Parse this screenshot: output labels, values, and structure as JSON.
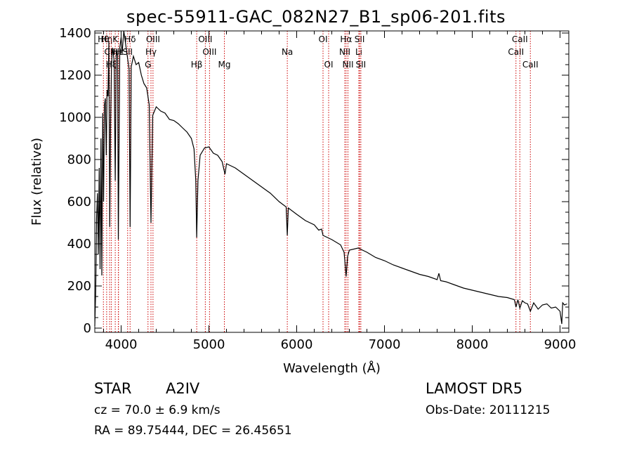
{
  "title": "spec-55911-GAC_082N27_B1_sp06-201.fits",
  "chart_data": {
    "type": "line",
    "xlabel": "Wavelength (Å)",
    "ylabel": "Flux (relative)",
    "xlim": [
      3700,
      9100
    ],
    "ylim": [
      -20,
      1410
    ],
    "xticks": [
      4000,
      5000,
      6000,
      7000,
      8000,
      9000
    ],
    "yticks": [
      0,
      200,
      400,
      600,
      800,
      1000,
      1200,
      1400
    ],
    "series": [
      {
        "values": [
          [
            3700,
            10
          ],
          [
            3710,
            180
          ],
          [
            3720,
            520
          ],
          [
            3730,
            640
          ],
          [
            3740,
            350
          ],
          [
            3750,
            760
          ],
          [
            3760,
            280
          ],
          [
            3770,
            900
          ],
          [
            3780,
            250
          ],
          [
            3790,
            1020
          ],
          [
            3800,
            600
          ],
          [
            3810,
            1060
          ],
          [
            3820,
            1090
          ],
          [
            3830,
            820
          ],
          [
            3840,
            1130
          ],
          [
            3850,
            1100
          ],
          [
            3860,
            1360
          ],
          [
            3870,
            480
          ],
          [
            3880,
            980
          ],
          [
            3890,
            1250
          ],
          [
            3900,
            1330
          ],
          [
            3920,
            1270
          ],
          [
            3933,
            700
          ],
          [
            3945,
            1320
          ],
          [
            3960,
            1290
          ],
          [
            3968,
            420
          ],
          [
            3985,
            1330
          ],
          [
            4000,
            1380
          ],
          [
            4010,
            1300
          ],
          [
            4030,
            1410
          ],
          [
            4050,
            1350
          ],
          [
            4070,
            1290
          ],
          [
            4090,
            1230
          ],
          [
            4102,
            480
          ],
          [
            4115,
            1240
          ],
          [
            4140,
            1290
          ],
          [
            4170,
            1250
          ],
          [
            4200,
            1260
          ],
          [
            4230,
            1200
          ],
          [
            4260,
            1160
          ],
          [
            4290,
            1140
          ],
          [
            4320,
            1060
          ],
          [
            4340,
            500
          ],
          [
            4360,
            1010
          ],
          [
            4400,
            1050
          ],
          [
            4450,
            1030
          ],
          [
            4500,
            1020
          ],
          [
            4550,
            990
          ],
          [
            4600,
            985
          ],
          [
            4650,
            970
          ],
          [
            4700,
            950
          ],
          [
            4750,
            930
          ],
          [
            4800,
            900
          ],
          [
            4830,
            850
          ],
          [
            4850,
            700
          ],
          [
            4861,
            430
          ],
          [
            4875,
            700
          ],
          [
            4900,
            820
          ],
          [
            4950,
            855
          ],
          [
            5000,
            860
          ],
          [
            5050,
            830
          ],
          [
            5100,
            820
          ],
          [
            5150,
            790
          ],
          [
            5183,
            730
          ],
          [
            5200,
            780
          ],
          [
            5250,
            770
          ],
          [
            5300,
            760
          ],
          [
            5400,
            730
          ],
          [
            5500,
            700
          ],
          [
            5600,
            670
          ],
          [
            5700,
            640
          ],
          [
            5800,
            600
          ],
          [
            5880,
            575
          ],
          [
            5893,
            440
          ],
          [
            5905,
            570
          ],
          [
            6000,
            540
          ],
          [
            6100,
            510
          ],
          [
            6200,
            490
          ],
          [
            6250,
            465
          ],
          [
            6283,
            470
          ],
          [
            6300,
            440
          ],
          [
            6400,
            420
          ],
          [
            6500,
            395
          ],
          [
            6540,
            360
          ],
          [
            6563,
            245
          ],
          [
            6580,
            340
          ],
          [
            6600,
            370
          ],
          [
            6700,
            380
          ],
          [
            6800,
            360
          ],
          [
            6900,
            335
          ],
          [
            7000,
            320
          ],
          [
            7100,
            300
          ],
          [
            7200,
            285
          ],
          [
            7300,
            270
          ],
          [
            7400,
            255
          ],
          [
            7500,
            245
          ],
          [
            7600,
            230
          ],
          [
            7620,
            260
          ],
          [
            7640,
            225
          ],
          [
            7700,
            220
          ],
          [
            7800,
            205
          ],
          [
            7900,
            190
          ],
          [
            8000,
            180
          ],
          [
            8100,
            170
          ],
          [
            8200,
            160
          ],
          [
            8300,
            150
          ],
          [
            8400,
            145
          ],
          [
            8480,
            135
          ],
          [
            8498,
            100
          ],
          [
            8520,
            135
          ],
          [
            8542,
            95
          ],
          [
            8570,
            130
          ],
          [
            8600,
            120
          ],
          [
            8630,
            115
          ],
          [
            8662,
            80
          ],
          [
            8700,
            120
          ],
          [
            8750,
            90
          ],
          [
            8800,
            110
          ],
          [
            8850,
            115
          ],
          [
            8900,
            95
          ],
          [
            8950,
            100
          ],
          [
            9000,
            80
          ],
          [
            9020,
            20
          ],
          [
            9030,
            120
          ],
          [
            9050,
            110
          ],
          [
            9080,
            115
          ]
        ]
      }
    ],
    "line_markers": [
      {
        "w": 3798,
        "label": "Hθ",
        "row": 1
      },
      {
        "w": 3835,
        "label": "Hη",
        "row": 1
      },
      {
        "w": 3869,
        "label": "CII",
        "row": 2
      },
      {
        "w": 3889,
        "label": "Hξ",
        "row": 3
      },
      {
        "w": 3933,
        "label": "K",
        "row": 1
      },
      {
        "w": 3968,
        "label": "H",
        "row": 2
      },
      {
        "w": 3970,
        "label": "Hε",
        "row": 2
      },
      {
        "w": 4074,
        "label": "SII",
        "row": 2
      },
      {
        "w": 4102,
        "label": "Hδ",
        "row": 1
      },
      {
        "w": 4306,
        "label": "G",
        "row": 3
      },
      {
        "w": 4340,
        "label": "Hγ",
        "row": 2
      },
      {
        "w": 4363,
        "label": "OIII",
        "row": 1
      },
      {
        "w": 4861,
        "label": "Hβ",
        "row": 3
      },
      {
        "w": 4959,
        "label": "OIII",
        "row": 1
      },
      {
        "w": 5007,
        "label": "OIII",
        "row": 2
      },
      {
        "w": 5176,
        "label": "Mg",
        "row": 3
      },
      {
        "w": 5893,
        "label": "Na",
        "row": 2
      },
      {
        "w": 6300,
        "label": "OI",
        "row": 1
      },
      {
        "w": 6364,
        "label": "OI",
        "row": 3
      },
      {
        "w": 6548,
        "label": "NII",
        "row": 2
      },
      {
        "w": 6563,
        "label": "Hα",
        "row": 1
      },
      {
        "w": 6584,
        "label": "NII",
        "row": 3
      },
      {
        "w": 6708,
        "label": "Li",
        "row": 2
      },
      {
        "w": 6717,
        "label": "SII",
        "row": 1
      },
      {
        "w": 6731,
        "label": "SII",
        "row": 3
      },
      {
        "w": 8498,
        "label": "CaII",
        "row": 2
      },
      {
        "w": 8542,
        "label": "CaII",
        "row": 1
      },
      {
        "w": 8662,
        "label": "CaII",
        "row": 3
      }
    ],
    "marker_color": "#cc0000"
  },
  "info": {
    "class": "STAR",
    "subclass": "A2IV",
    "survey": "LAMOST  DR5",
    "cz": "cz = 70.0 ± 6.9 km/s",
    "obs_date": "Obs-Date: 20111215",
    "coords": "RA =  89.75444, DEC =  26.45651"
  }
}
